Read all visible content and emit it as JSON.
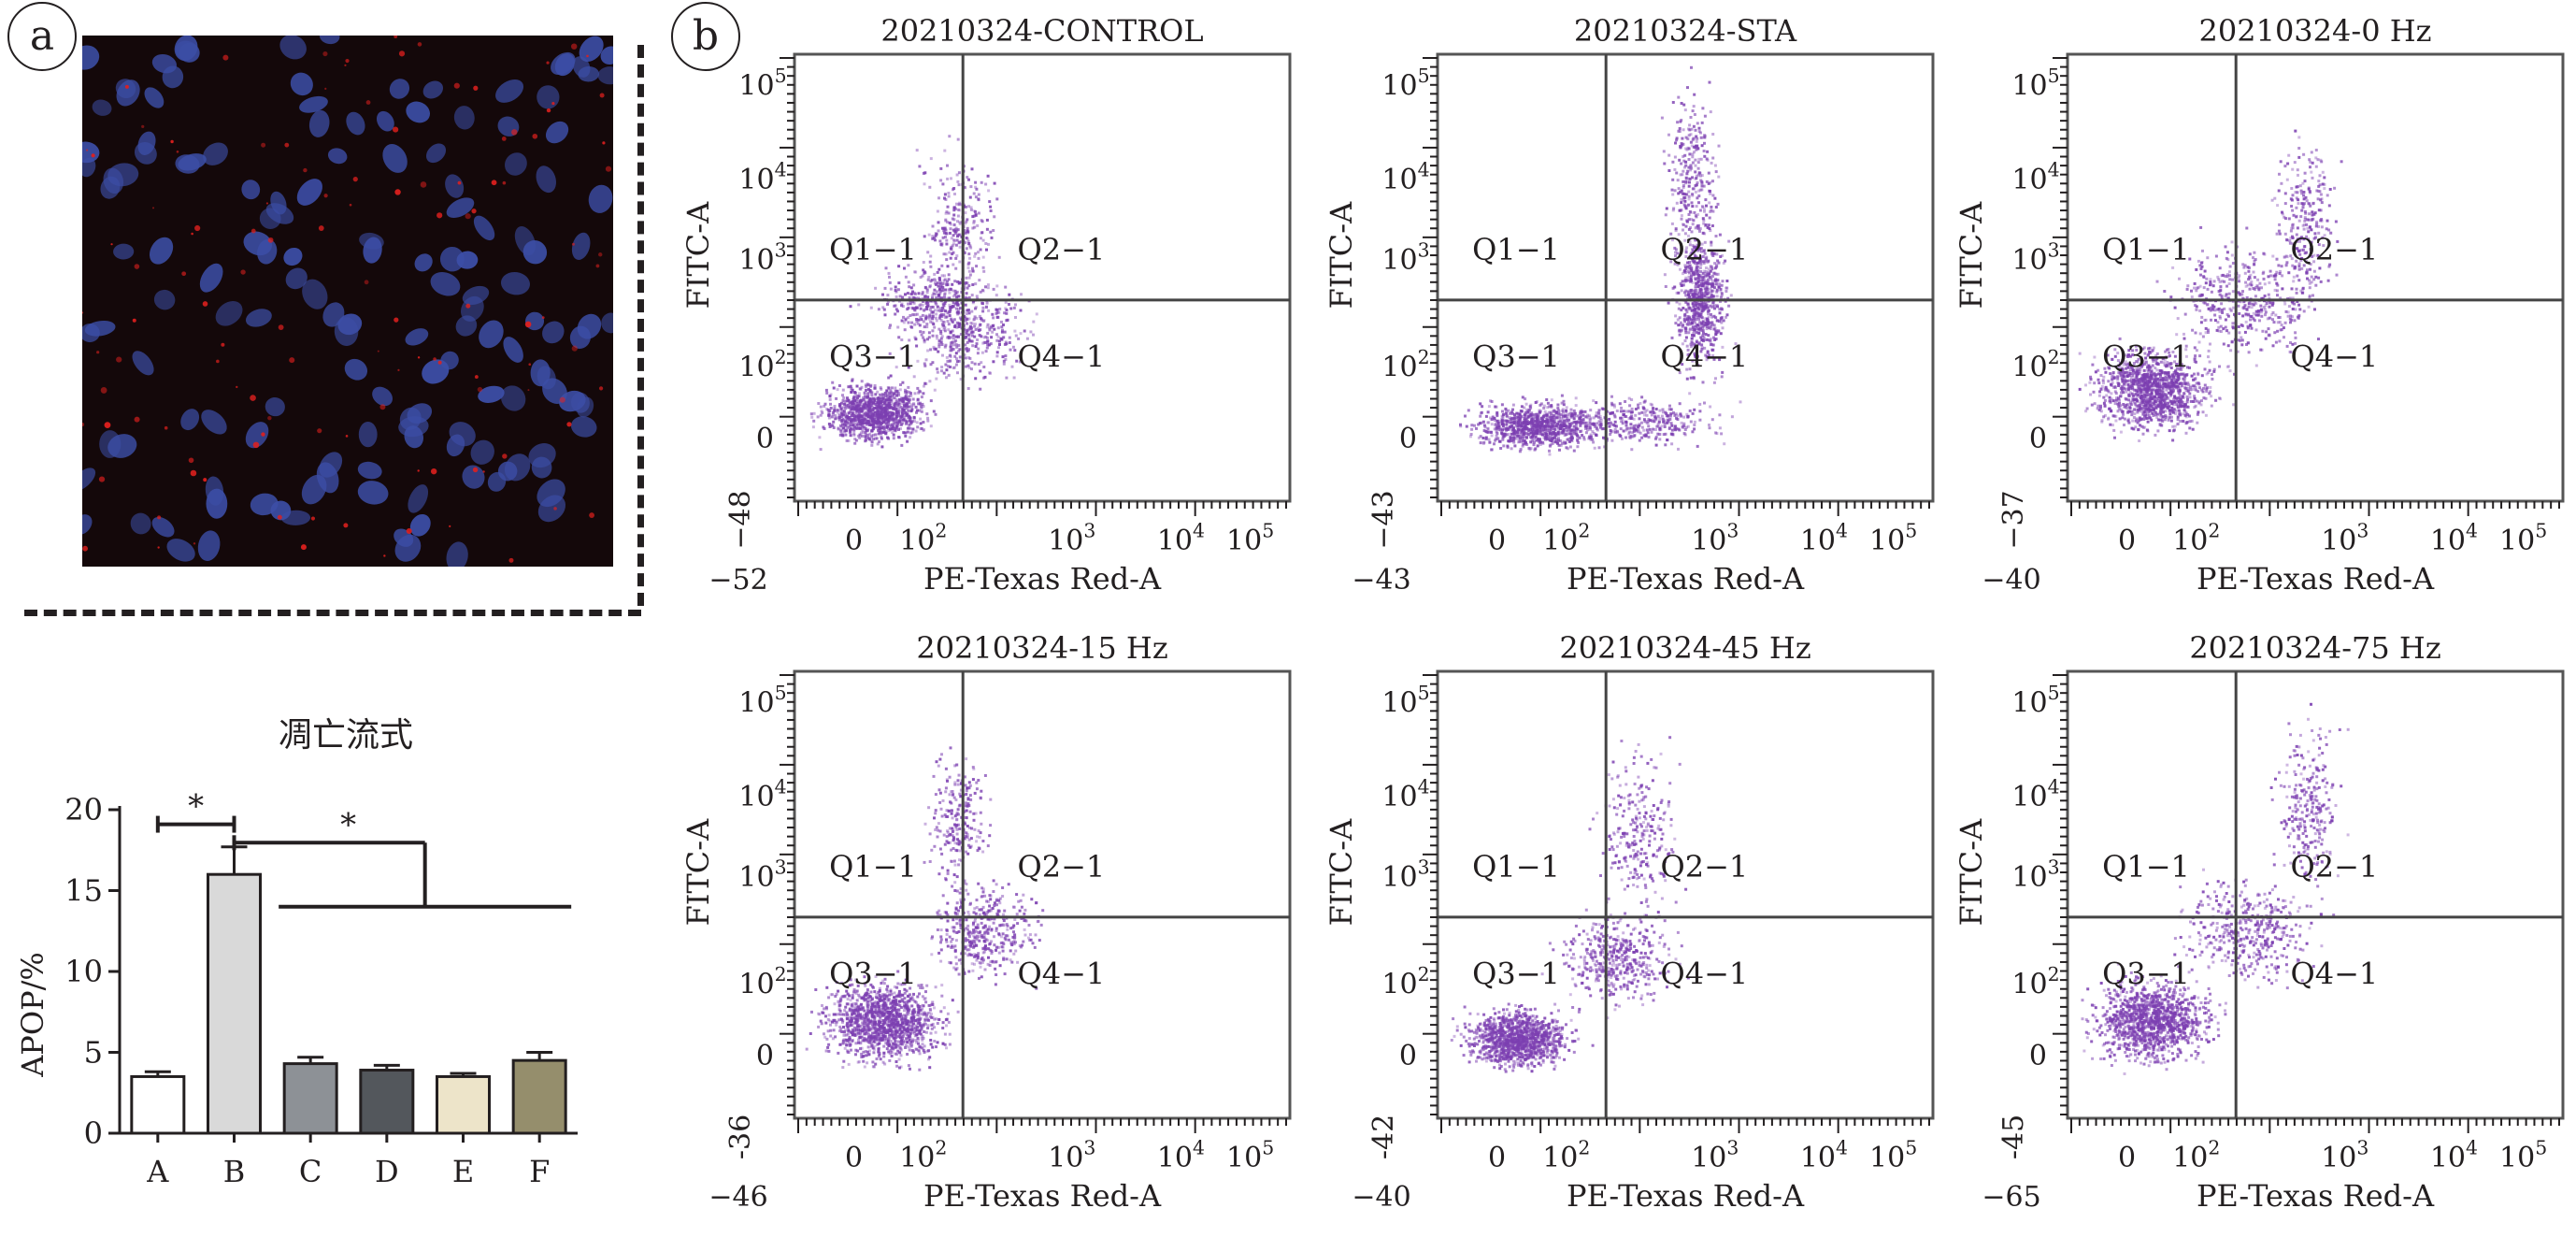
{
  "panel_labels": {
    "a": "a",
    "b": "b"
  },
  "colors": {
    "nuclei": "#3c4ea6",
    "red_signal": "#e0201e",
    "event_purple": "#7c3fb1",
    "bar_A": "#ffffff",
    "bar_B": "#d9d9d9",
    "bar_C": "#8d9196",
    "bar_D": "#53575c",
    "bar_E": "#ede4c9",
    "bar_F": "#958e6c",
    "ink": "#231f20"
  },
  "chart_data": [
    {
      "type": "bar",
      "title": "凋亡流式",
      "ylabel": "APOP/%",
      "xlabel": "",
      "categories": [
        "A",
        "B",
        "C",
        "D",
        "E",
        "F"
      ],
      "values": [
        3.5,
        16.0,
        4.3,
        3.9,
        3.5,
        4.5
      ],
      "errors": [
        0.3,
        1.7,
        0.4,
        0.3,
        0.2,
        0.5
      ],
      "ylim": [
        0,
        20
      ],
      "yticks": [
        "0",
        "5",
        "10",
        "15",
        "20"
      ],
      "significance": [
        {
          "from": "A",
          "to": "B",
          "label": "*"
        },
        {
          "from": "B",
          "to_group": [
            "C",
            "D",
            "E",
            "F"
          ],
          "label": "*"
        }
      ]
    },
    {
      "type": "scatter",
      "layout": "3x2 flow cytometry grid",
      "xlabel": "PE-Texas Red-A",
      "ylabel": "FITC-A",
      "x_tick_labels": [
        "0",
        "10^2",
        "10^3",
        "10^4",
        "10^5"
      ],
      "y_tick_labels": [
        "0",
        "10^2",
        "10^3",
        "10^4",
        "10^5"
      ],
      "quadrant_labels": [
        "Q1−1",
        "Q2−1",
        "Q3−1",
        "Q4−1"
      ],
      "gate_x": 450,
      "gate_y": 1000,
      "plots": [
        {
          "title": "20210324-CONTROL",
          "x_min": "−52",
          "y_min": "−48"
        },
        {
          "title": "20210324-STA",
          "x_min": "−43",
          "y_min": "−43"
        },
        {
          "title": "20210324-0 Hz",
          "x_min": "−40",
          "y_min": "−37"
        },
        {
          "title": "20210324-15 Hz",
          "x_min": "−46",
          "y_min": "-36"
        },
        {
          "title": "20210324-45 Hz",
          "x_min": "−40",
          "y_min": "-42"
        },
        {
          "title": "20210324-75 Hz",
          "x_min": "−65",
          "y_min": "-45"
        }
      ]
    }
  ]
}
